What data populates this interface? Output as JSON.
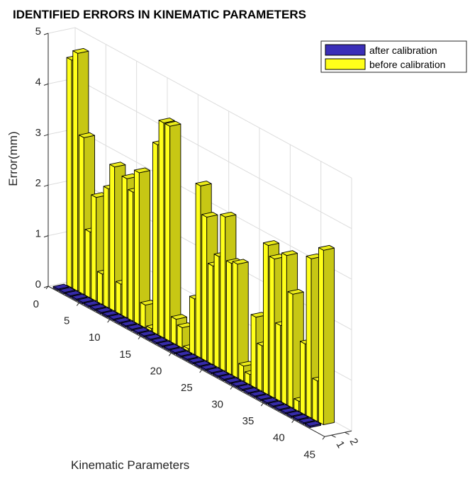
{
  "chart_data": {
    "type": "bar3",
    "title": "IDENTIFIED ERRORS IN KINEMATIC PARAMETERS",
    "xlabel": "Kinematic Parameters",
    "ylabel": "",
    "zlabel": "Error(mm)",
    "x_ticks": [
      "0",
      "5",
      "10",
      "15",
      "20",
      "25",
      "30",
      "35",
      "40",
      "45"
    ],
    "y_ticks": [
      "1",
      "2"
    ],
    "z_ticks": [
      "0",
      "1",
      "2",
      "3",
      "4",
      "5"
    ],
    "zlim": [
      0,
      5
    ],
    "grid": true,
    "legend_position": "top-right",
    "categories": [
      1,
      2,
      3,
      4,
      5,
      6,
      7,
      8,
      9,
      10,
      11,
      12,
      13,
      14,
      15,
      16,
      17,
      18,
      19,
      20,
      21,
      22,
      23,
      24,
      25,
      26,
      27,
      28,
      29,
      30,
      31,
      32,
      33,
      34,
      35,
      36,
      37,
      38,
      39,
      40,
      41,
      42
    ],
    "series": [
      {
        "name": "after calibration",
        "color": "#3b2fb8",
        "values": [
          0.03,
          0.03,
          0.03,
          0.03,
          0.03,
          0.03,
          0.03,
          0.03,
          0.03,
          0.03,
          0.03,
          0.03,
          0.03,
          0.03,
          0.03,
          0.03,
          0.03,
          0.03,
          0.03,
          0.03,
          0.03,
          0.03,
          0.03,
          0.03,
          0.03,
          0.03,
          0.03,
          0.03,
          0.03,
          0.03,
          0.03,
          0.03,
          0.03,
          0.03,
          0.03,
          0.03,
          0.03,
          0.03,
          0.03,
          0.03,
          0.03,
          0.03
        ]
      },
      {
        "name": "before calibration",
        "color": "#ffff1a",
        "values": [
          4.5,
          4.7,
          3.1,
          1.3,
          2.05,
          0.6,
          2.35,
          2.85,
          0.6,
          2.75,
          2.55,
          3.0,
          0.45,
          0.05,
          3.75,
          4.25,
          4.25,
          0.5,
          0.4,
          0.05,
          1.1,
          3.4,
          2.85,
          1.95,
          2.2,
          3.05,
          2.2,
          2.25,
          0.3,
          0.2,
          1.4,
          0.9,
          2.95,
          2.75,
          1.5,
          2.95,
          2.25,
          0.2,
          1.4,
          3.15,
          0.8,
          3.45
        ]
      }
    ]
  }
}
